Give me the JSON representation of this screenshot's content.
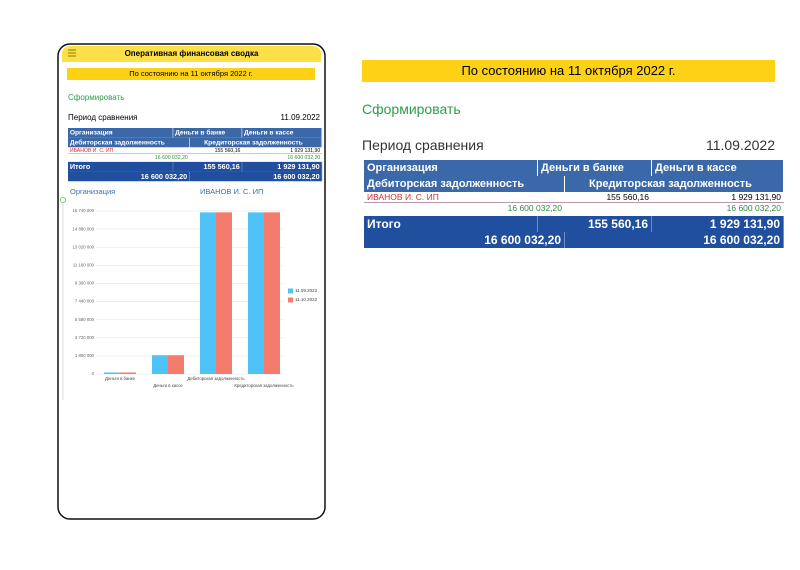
{
  "header": {
    "title": "Оперативная финансовая сводка"
  },
  "banner": "По состоянию на 11 октября 2022 г.",
  "form_button": "Сформировать",
  "period": {
    "label": "Период сравнения",
    "value": "11.09.2022"
  },
  "table": {
    "header": [
      [
        "Организация",
        "Деньги в банке",
        "Деньги в кассе"
      ],
      [
        "Дебиторская задолженность",
        "Кредиторская задолженность"
      ]
    ],
    "rows": [
      [
        "ИВАНОВ И. С. ИП",
        "155 560,16",
        "1 929 131,90"
      ],
      [
        "16 600 032,20",
        "16 600 032,20"
      ]
    ],
    "total": [
      [
        "Итого",
        "155 560,16",
        "1 929 131,90"
      ],
      [
        "16 600 032,20",
        "16 600 032,20"
      ]
    ]
  },
  "chart_filter": {
    "label": "Организация",
    "value": "ИВАНОВ И. С. ИП"
  },
  "chart_data": {
    "type": "bar",
    "categories": [
      "Деньги в банке",
      "Деньги в кассе",
      "Дебиторская задолженность",
      "Кредиторская задолженность"
    ],
    "series": [
      {
        "name": "11.09.2022",
        "color": "#4fc3f7",
        "values": [
          155560.16,
          1929131.9,
          16600032.2,
          16600032.2
        ]
      },
      {
        "name": "11.10.2022",
        "color": "#f47c6c",
        "values": [
          155560.16,
          1929131.9,
          16600032.2,
          16600032.2
        ]
      }
    ],
    "ylim": [
      0,
      16740000
    ],
    "yticks": [
      0,
      {
        "value": 1860000,
        "label": "1 860 000"
      },
      {
        "value": 3720000,
        "label": "3 720 000"
      },
      {
        "value": 5580000,
        "label": "5 580 000"
      },
      {
        "value": 7440000,
        "label": "7 440 000"
      },
      {
        "value": 9300000,
        "label": "9 300 000"
      },
      {
        "value": 11160000,
        "label": "11 160 000"
      },
      {
        "value": 13020000,
        "label": "13 020 000"
      },
      {
        "value": 14880000,
        "label": "14 880 000"
      },
      {
        "value": 16740000,
        "label": "16 740 000"
      }
    ],
    "grid": true,
    "legend": "right"
  }
}
